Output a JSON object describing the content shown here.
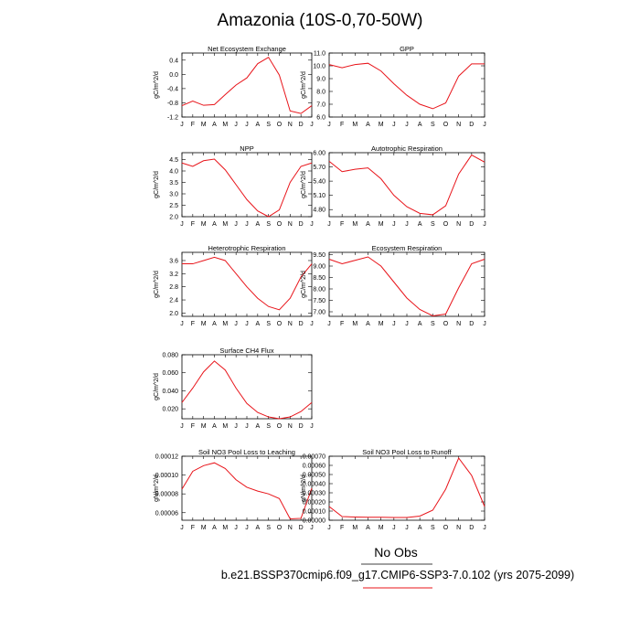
{
  "figure": {
    "title": "Amazonia (10S-0,70-50W)",
    "legend_label": "No Obs",
    "case_label": "b.e21.BSSP370cmip6.f09_g17.CMIP6-SSP3-7.0.102 (yrs 2075-2099)",
    "series_color": "#e8141a"
  },
  "chart_data": [
    {
      "type": "line",
      "title": "Net Ecosystem Exchange",
      "ylabel": "gC/m^2/d",
      "x": [
        "J",
        "F",
        "M",
        "A",
        "M",
        "J",
        "J",
        "A",
        "S",
        "O",
        "N",
        "D",
        "J"
      ],
      "y": [
        -0.88,
        -0.75,
        -0.87,
        -0.85,
        -0.57,
        -0.3,
        -0.1,
        0.3,
        0.48,
        -0.02,
        -1.03,
        -1.1,
        -0.88
      ],
      "ylim": [
        -1.2,
        0.6
      ],
      "yticks": [
        -1.2,
        -0.8,
        -0.4,
        0.0,
        0.4
      ],
      "ytick_labels": [
        "-1.2",
        "-0.8",
        "-0.4",
        "0.0",
        "0.4"
      ]
    },
    {
      "type": "line",
      "title": "GPP",
      "ylabel": "gC/m^2/d",
      "x": [
        "J",
        "F",
        "M",
        "A",
        "M",
        "J",
        "J",
        "A",
        "S",
        "O",
        "N",
        "D",
        "J"
      ],
      "y": [
        10.1,
        9.85,
        10.1,
        10.2,
        9.6,
        8.6,
        7.7,
        7.0,
        6.65,
        7.1,
        9.2,
        10.15,
        10.15
      ],
      "ylim": [
        6.0,
        11.0
      ],
      "yticks": [
        6,
        7,
        8,
        9,
        10,
        11
      ],
      "ytick_labels": [
        "6.0",
        "7.0",
        "8.0",
        "9.0",
        "10.0",
        "11.0"
      ]
    },
    {
      "type": "line",
      "title": "NPP",
      "ylabel": "gC/m^2/d",
      "x": [
        "J",
        "F",
        "M",
        "A",
        "M",
        "J",
        "J",
        "A",
        "S",
        "O",
        "N",
        "D",
        "J"
      ],
      "y": [
        4.35,
        4.2,
        4.45,
        4.52,
        4.05,
        3.4,
        2.75,
        2.25,
        2.0,
        2.3,
        3.5,
        4.2,
        4.35
      ],
      "ylim": [
        2.0,
        4.8
      ],
      "yticks": [
        2.0,
        2.5,
        3.0,
        3.5,
        4.0,
        4.5
      ],
      "ytick_labels": [
        "2.0",
        "2.5",
        "3.0",
        "3.5",
        "4.0",
        "4.5"
      ]
    },
    {
      "type": "line",
      "title": "Autotrophic Respiration",
      "ylabel": "gC/m^2/d",
      "x": [
        "J",
        "F",
        "M",
        "A",
        "M",
        "J",
        "J",
        "A",
        "S",
        "O",
        "N",
        "D",
        "J"
      ],
      "y": [
        5.82,
        5.6,
        5.65,
        5.68,
        5.45,
        5.1,
        4.86,
        4.72,
        4.69,
        4.88,
        5.55,
        5.95,
        5.8
      ],
      "ylim": [
        4.65,
        6.0
      ],
      "yticks": [
        4.8,
        5.1,
        5.4,
        5.7,
        6.0
      ],
      "ytick_labels": [
        "4.80",
        "5.10",
        "5.40",
        "5.70",
        "6.00"
      ]
    },
    {
      "type": "line",
      "title": "Heterotrophic Respiration",
      "ylabel": "gC/m^2/d",
      "x": [
        "J",
        "F",
        "M",
        "A",
        "M",
        "J",
        "J",
        "A",
        "S",
        "O",
        "N",
        "D",
        "J"
      ],
      "y": [
        3.5,
        3.5,
        3.6,
        3.7,
        3.6,
        3.2,
        2.8,
        2.45,
        2.2,
        2.1,
        2.45,
        3.1,
        3.5
      ],
      "ylim": [
        1.9,
        3.85
      ],
      "yticks": [
        2.0,
        2.4,
        2.8,
        3.2,
        3.6
      ],
      "ytick_labels": [
        "2.0",
        "2.4",
        "2.8",
        "3.2",
        "3.6"
      ]
    },
    {
      "type": "line",
      "title": "Ecosystem Respiration",
      "ylabel": "gC/m^2/d",
      "x": [
        "J",
        "F",
        "M",
        "A",
        "M",
        "J",
        "J",
        "A",
        "S",
        "O",
        "N",
        "D",
        "J"
      ],
      "y": [
        9.3,
        9.1,
        9.25,
        9.4,
        9.0,
        8.3,
        7.6,
        7.1,
        6.82,
        6.9,
        8.05,
        9.1,
        9.3
      ],
      "ylim": [
        6.8,
        9.6
      ],
      "yticks": [
        7.0,
        7.5,
        8.0,
        8.5,
        9.0,
        9.5
      ],
      "ytick_labels": [
        "7.00",
        "7.50",
        "8.00",
        "8.50",
        "9.00",
        "9.50"
      ]
    },
    {
      "type": "line",
      "title": "Surface CH4 Flux",
      "ylabel": "gC/m^2/d",
      "x": [
        "J",
        "F",
        "M",
        "A",
        "M",
        "J",
        "J",
        "A",
        "S",
        "O",
        "N",
        "D",
        "J"
      ],
      "y": [
        0.027,
        0.043,
        0.061,
        0.073,
        0.063,
        0.043,
        0.026,
        0.016,
        0.011,
        0.009,
        0.011,
        0.017,
        0.027
      ],
      "ylim": [
        0.009,
        0.08
      ],
      "yticks": [
        0.02,
        0.04,
        0.06,
        0.08
      ],
      "ytick_labels": [
        "0.020",
        "0.040",
        "0.060",
        "0.080"
      ]
    },
    {
      "type": "line",
      "title": "Soil NO3 Pool Loss to Leaching",
      "ylabel": "gN/m^2/d",
      "x": [
        "J",
        "F",
        "M",
        "A",
        "M",
        "J",
        "J",
        "A",
        "S",
        "O",
        "N",
        "D",
        "J"
      ],
      "y": [
        8.5e-05,
        0.000104,
        0.00011,
        0.000113,
        0.000107,
        9.5e-05,
        8.7e-05,
        8.3e-05,
        8e-05,
        7.5e-05,
        5.35e-05,
        5.4e-05,
        8.6e-05
      ],
      "ylim": [
        5.2e-05,
        0.00012
      ],
      "yticks": [
        6e-05,
        8e-05,
        0.0001,
        0.00012
      ],
      "ytick_labels": [
        "0.00006",
        "0.00008",
        "0.00010",
        "0.00012"
      ]
    },
    {
      "type": "line",
      "title": "Soil NO3 Pool Loss to Runoff",
      "ylabel": "gN/m^2/d",
      "x": [
        "J",
        "F",
        "M",
        "A",
        "M",
        "J",
        "J",
        "A",
        "S",
        "O",
        "N",
        "D",
        "J"
      ],
      "y": [
        0.00015,
        4e-05,
        3.5e-05,
        3.3e-05,
        3.2e-05,
        3e-05,
        3e-05,
        4.5e-05,
        0.00011,
        0.00034,
        0.00068,
        0.00049,
        0.00015
      ],
      "ylim": [
        0.0,
        0.0007
      ],
      "yticks": [
        0,
        0.0001,
        0.0002,
        0.0003,
        0.0004,
        0.0005,
        0.0006,
        0.0007
      ],
      "ytick_labels": [
        "0.00000",
        "0.00010",
        "0.00020",
        "0.00030",
        "0.00040",
        "0.00050",
        "0.00060",
        "0.00070"
      ]
    }
  ]
}
